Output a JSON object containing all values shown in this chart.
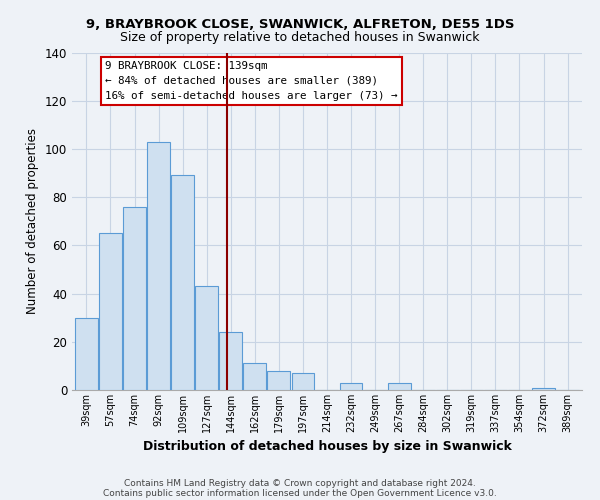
{
  "title": "9, BRAYBROOK CLOSE, SWANWICK, ALFRETON, DE55 1DS",
  "subtitle": "Size of property relative to detached houses in Swanwick",
  "xlabel": "Distribution of detached houses by size in Swanwick",
  "ylabel": "Number of detached properties",
  "bar_labels": [
    "39sqm",
    "57sqm",
    "74sqm",
    "92sqm",
    "109sqm",
    "127sqm",
    "144sqm",
    "162sqm",
    "179sqm",
    "197sqm",
    "214sqm",
    "232sqm",
    "249sqm",
    "267sqm",
    "284sqm",
    "302sqm",
    "319sqm",
    "337sqm",
    "354sqm",
    "372sqm",
    "389sqm"
  ],
  "bar_values": [
    30,
    65,
    76,
    103,
    89,
    43,
    24,
    11,
    8,
    7,
    0,
    3,
    0,
    3,
    0,
    0,
    0,
    0,
    0,
    1,
    0
  ],
  "bar_color": "#cfe0f0",
  "bar_edge_color": "#5b9bd5",
  "vline_x": 5.85,
  "vline_color": "#8b0000",
  "ylim": [
    0,
    140
  ],
  "yticks": [
    0,
    20,
    40,
    60,
    80,
    100,
    120,
    140
  ],
  "annotation_title": "9 BRAYBROOK CLOSE: 139sqm",
  "annotation_line1": "← 84% of detached houses are smaller (389)",
  "annotation_line2": "16% of semi-detached houses are larger (73) →",
  "footnote1": "Contains HM Land Registry data © Crown copyright and database right 2024.",
  "footnote2": "Contains public sector information licensed under the Open Government Licence v3.0.",
  "background_color": "#eef2f7",
  "plot_background": "#eef2f7",
  "grid_color": "#c8d4e4"
}
